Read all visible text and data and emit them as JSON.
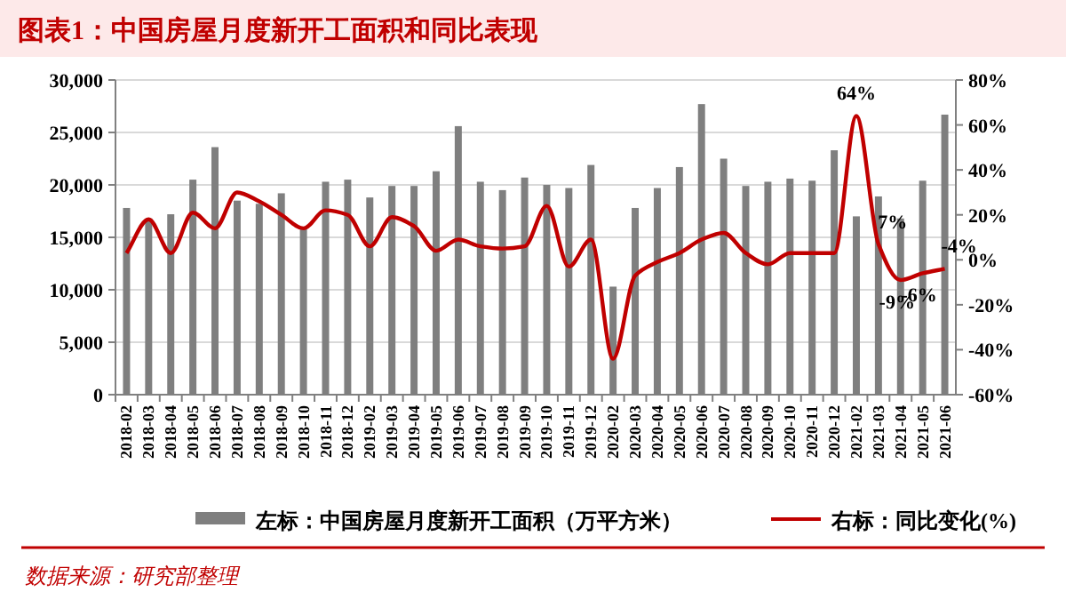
{
  "chart_data": {
    "type": "bar",
    "title": "图表1：中国房屋月度新开工面积和同比表现",
    "categories": [
      "2018-02",
      "2018-03",
      "2018-04",
      "2018-05",
      "2018-06",
      "2018-07",
      "2018-08",
      "2018-09",
      "2018-10",
      "2018-11",
      "2018-12",
      "2019-02",
      "2019-03",
      "2019-04",
      "2019-05",
      "2019-06",
      "2019-07",
      "2019-08",
      "2019-09",
      "2019-10",
      "2019-11",
      "2019-12",
      "2020-02",
      "2020-03",
      "2020-04",
      "2020-05",
      "2020-06",
      "2020-07",
      "2020-08",
      "2020-09",
      "2020-10",
      "2020-11",
      "2020-12",
      "2021-02",
      "2021-03",
      "2021-04",
      "2021-05",
      "2021-06"
    ],
    "series": [
      {
        "name": "左标：中国房屋月度新开工面积（万平方米）",
        "color": "#7f7f7f",
        "values": [
          17800,
          16800,
          17200,
          20500,
          23600,
          18500,
          18200,
          19200,
          16000,
          20300,
          20500,
          18800,
          19900,
          19900,
          21300,
          25600,
          20300,
          19500,
          20700,
          20000,
          19700,
          21900,
          10300,
          17800,
          19700,
          21700,
          27700,
          22500,
          19900,
          20300,
          20600,
          20400,
          23300,
          17000,
          18900,
          16800,
          20400,
          26700
        ]
      },
      {
        "name": "右标：同比变化(%)",
        "type": "line",
        "axis": "y2",
        "color": "#c00000",
        "values": [
          3,
          18,
          3,
          21,
          14,
          30,
          26,
          20,
          14,
          22,
          20,
          6,
          19,
          15,
          4,
          9,
          6,
          5,
          6,
          24,
          -3,
          9,
          -44,
          -7,
          -1,
          3,
          9,
          12,
          3,
          -2,
          3,
          3,
          3,
          64,
          7,
          -9,
          -6,
          -4
        ],
        "value_labels": [
          null,
          null,
          null,
          null,
          null,
          null,
          null,
          null,
          null,
          null,
          null,
          null,
          null,
          null,
          null,
          null,
          null,
          null,
          null,
          null,
          null,
          null,
          null,
          null,
          null,
          null,
          null,
          null,
          null,
          null,
          null,
          null,
          null,
          "64%",
          "7%",
          "-9%",
          "-6%",
          "-4%"
        ]
      }
    ],
    "ylim": [
      0,
      30000
    ],
    "yticks": [
      0,
      {
        "value": 5000,
        "label": "5,000"
      },
      {
        "value": 10000,
        "label": "10,000"
      },
      {
        "value": 15000,
        "label": "15,000"
      },
      {
        "value": 20000,
        "label": "20,000"
      },
      {
        "value": 25000,
        "label": "25,000"
      },
      {
        "value": 30000,
        "label": "30,000"
      }
    ],
    "y2lim": [
      -60,
      80
    ],
    "y2ticks": [
      {
        "value": -60,
        "label": "-60%"
      },
      {
        "value": -40,
        "label": "-40%"
      },
      {
        "value": -20,
        "label": "-20%"
      },
      {
        "value": 0,
        "label": "0%"
      },
      {
        "value": 20,
        "label": "20%"
      },
      {
        "value": 40,
        "label": "40%"
      },
      {
        "value": 60,
        "label": "60%"
      },
      {
        "value": 80,
        "label": "80%"
      }
    ],
    "grid": "y",
    "legend": "bottom",
    "annotations": [
      "数据来源：研究部整理"
    ]
  }
}
